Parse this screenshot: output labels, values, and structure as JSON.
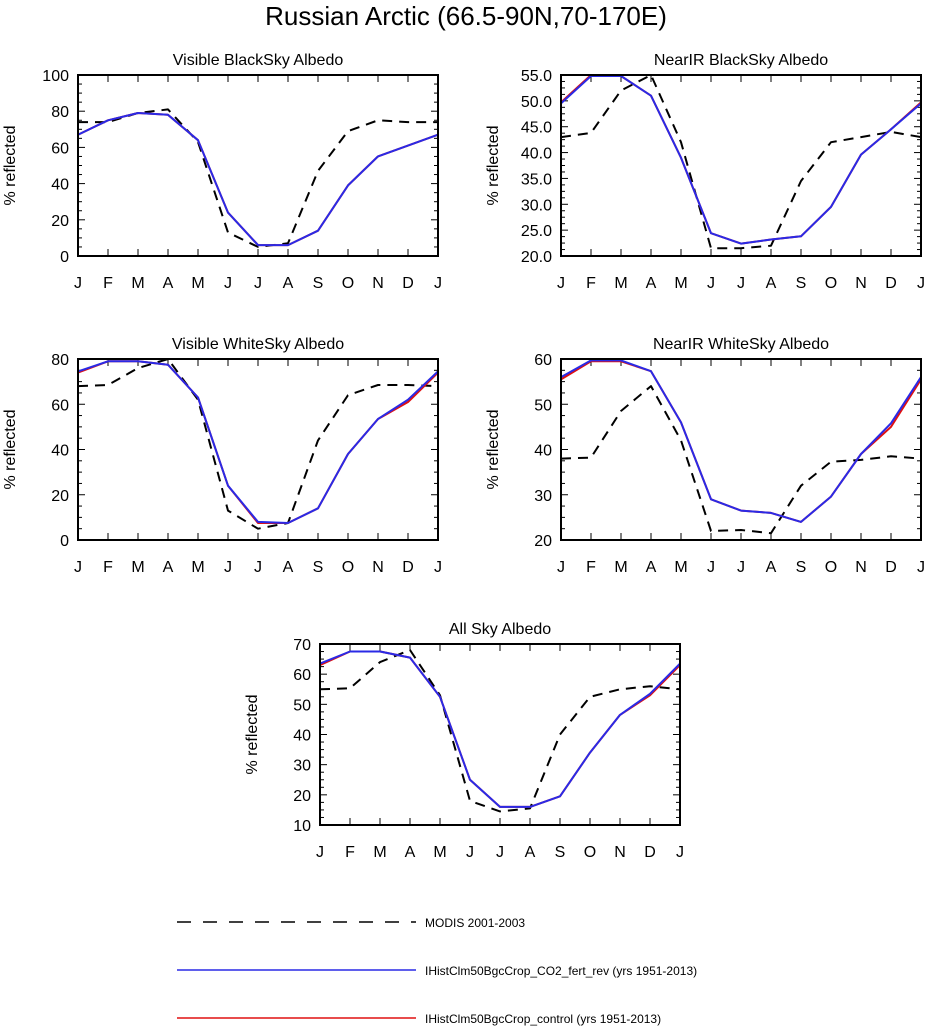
{
  "figure": {
    "title": "Russian Arctic (66.5-90N,70-170E)",
    "colors": {
      "modis": "#000000",
      "co2_fert_rev": "#2a2ae6",
      "control": "#e01010"
    },
    "legend": [
      {
        "label": "MODIS 2001-2003",
        "style": "dashed",
        "color": "#000000"
      },
      {
        "label": "IHistClm50BgcCrop_CO2_fert_rev (yrs 1951-2013)",
        "style": "solid",
        "color": "#2a2ae6"
      },
      {
        "label": "IHistClm50BgcCrop_control (yrs 1951-2013)",
        "style": "solid",
        "color": "#e01010"
      }
    ]
  },
  "chart_data": [
    {
      "type": "line",
      "title": "Visible BlackSky Albedo",
      "ylabel": "% reflected",
      "xlabel": "",
      "categories": [
        "J",
        "F",
        "M",
        "A",
        "M",
        "J",
        "J",
        "A",
        "S",
        "O",
        "N",
        "D",
        "J"
      ],
      "ylim": [
        0,
        100
      ],
      "yticks": [
        0,
        20,
        40,
        60,
        80,
        100
      ],
      "ytick_labels": [
        "0",
        "20",
        "40",
        "60",
        "80",
        "100"
      ],
      "series": [
        {
          "name": "MODIS 2001-2003",
          "style": "dashed",
          "color": "#000000",
          "values": [
            74,
            74,
            79,
            81,
            63,
            13,
            5,
            7,
            47,
            69,
            75,
            74,
            74
          ]
        },
        {
          "name": "IHistClm50BgcCrop_control (yrs 1951-2013)",
          "style": "solid",
          "color": "#e01010",
          "values": [
            67,
            75,
            79,
            78,
            64,
            24,
            6,
            6,
            14,
            39,
            55,
            61,
            67
          ]
        },
        {
          "name": "IHistClm50BgcCrop_CO2_fert_rev (yrs 1951-2013)",
          "style": "solid",
          "color": "#2a2ae6",
          "values": [
            67,
            75,
            79,
            78,
            64,
            24,
            6,
            6,
            14,
            39,
            55,
            61,
            67
          ]
        }
      ]
    },
    {
      "type": "line",
      "title": "NearIR BlackSky Albedo",
      "ylabel": "% reflected",
      "xlabel": "",
      "categories": [
        "J",
        "F",
        "M",
        "A",
        "M",
        "J",
        "J",
        "A",
        "S",
        "O",
        "N",
        "D",
        "J"
      ],
      "ylim": [
        20,
        55
      ],
      "yticks": [
        20,
        25,
        30,
        35,
        40,
        45,
        50,
        55
      ],
      "ytick_labels": [
        "20.0",
        "25.0",
        "30.0",
        "35.0",
        "40.0",
        "45.0",
        "50.0",
        "55.0"
      ],
      "series": [
        {
          "name": "MODIS 2001-2003",
          "style": "dashed",
          "color": "#000000",
          "values": [
            43,
            43.8,
            52,
            55,
            42,
            21.5,
            21.5,
            22,
            34.5,
            42,
            43,
            44,
            43
          ]
        },
        {
          "name": "IHistClm50BgcCrop_control (yrs 1951-2013)",
          "style": "solid",
          "color": "#e01010",
          "values": [
            49.7,
            55,
            54.8,
            51,
            39,
            24.4,
            22.4,
            23.2,
            23.8,
            29.5,
            39.6,
            44.5,
            49.7
          ]
        },
        {
          "name": "IHistClm50BgcCrop_CO2_fert_rev (yrs 1951-2013)",
          "style": "solid",
          "color": "#2a2ae6",
          "values": [
            49.5,
            54.8,
            54.8,
            51,
            39,
            24.4,
            22.4,
            23.2,
            23.8,
            29.5,
            39.6,
            44.5,
            49.5
          ]
        }
      ]
    },
    {
      "type": "line",
      "title": "Visible WhiteSky Albedo",
      "ylabel": "% reflected",
      "xlabel": "",
      "categories": [
        "J",
        "F",
        "M",
        "A",
        "M",
        "J",
        "J",
        "A",
        "S",
        "O",
        "N",
        "D",
        "J"
      ],
      "ylim": [
        0,
        80
      ],
      "yticks": [
        0,
        20,
        40,
        60,
        80
      ],
      "ytick_labels": [
        "0",
        "20",
        "40",
        "60",
        "80"
      ],
      "series": [
        {
          "name": "MODIS 2001-2003",
          "style": "dashed",
          "color": "#000000",
          "values": [
            68,
            68.5,
            76,
            80,
            62,
            13,
            5,
            7.5,
            44,
            64,
            68.5,
            68.5,
            68
          ]
        },
        {
          "name": "IHistClm50BgcCrop_control (yrs 1951-2013)",
          "style": "solid",
          "color": "#e01010",
          "values": [
            74,
            79,
            79,
            77.5,
            63,
            24,
            7.5,
            7.5,
            14,
            38,
            53.5,
            61,
            74
          ]
        },
        {
          "name": "IHistClm50BgcCrop_CO2_fert_rev (yrs 1951-2013)",
          "style": "solid",
          "color": "#2a2ae6",
          "values": [
            74.5,
            79,
            79,
            77.5,
            63,
            24,
            8,
            7.5,
            14,
            38,
            53.5,
            62,
            74.5
          ]
        }
      ]
    },
    {
      "type": "line",
      "title": "NearIR WhiteSky Albedo",
      "ylabel": "% reflected",
      "xlabel": "",
      "categories": [
        "J",
        "F",
        "M",
        "A",
        "M",
        "J",
        "J",
        "A",
        "S",
        "O",
        "N",
        "D",
        "J"
      ],
      "ylim": [
        20,
        60
      ],
      "yticks": [
        20,
        30,
        40,
        50,
        60
      ],
      "ytick_labels": [
        "20",
        "30",
        "40",
        "50",
        "60"
      ],
      "series": [
        {
          "name": "MODIS 2001-2003",
          "style": "dashed",
          "color": "#000000",
          "values": [
            38,
            38.2,
            48.5,
            54,
            42,
            22,
            22.2,
            21.5,
            32,
            37.3,
            37.7,
            38.5,
            38
          ]
        },
        {
          "name": "IHistClm50BgcCrop_control (yrs 1951-2013)",
          "style": "solid",
          "color": "#e01010",
          "values": [
            55.5,
            59.5,
            59.5,
            57.3,
            46,
            29,
            26.5,
            26,
            24,
            29.6,
            39,
            45,
            55.5
          ]
        },
        {
          "name": "IHistClm50BgcCrop_CO2_fert_rev (yrs 1951-2013)",
          "style": "solid",
          "color": "#2a2ae6",
          "values": [
            56,
            59.7,
            59.7,
            57.3,
            46,
            29,
            26.5,
            26,
            24,
            29.6,
            39,
            45.8,
            56
          ]
        }
      ]
    },
    {
      "type": "line",
      "title": "All Sky Albedo",
      "ylabel": "% reflected",
      "xlabel": "",
      "categories": [
        "J",
        "F",
        "M",
        "A",
        "M",
        "J",
        "J",
        "A",
        "S",
        "O",
        "N",
        "D",
        "J"
      ],
      "ylim": [
        10,
        70
      ],
      "yticks": [
        10,
        20,
        30,
        40,
        50,
        60,
        70
      ],
      "ytick_labels": [
        "10",
        "20",
        "30",
        "40",
        "50",
        "60",
        "70"
      ],
      "series": [
        {
          "name": "MODIS 2001-2003",
          "style": "dashed",
          "color": "#000000",
          "values": [
            55,
            55.3,
            64,
            68,
            53,
            18,
            14.5,
            15.5,
            40,
            52.5,
            55,
            56,
            55
          ]
        },
        {
          "name": "IHistClm50BgcCrop_control (yrs 1951-2013)",
          "style": "solid",
          "color": "#e01010",
          "values": [
            63,
            67.5,
            67.5,
            65.5,
            52.5,
            25,
            16,
            16,
            19.5,
            34,
            46.5,
            53,
            63
          ]
        },
        {
          "name": "IHistClm50BgcCrop_CO2_fert_rev (yrs 1951-2013)",
          "style": "solid",
          "color": "#2a2ae6",
          "values": [
            63.5,
            67.5,
            67.5,
            65.5,
            52.5,
            25,
            16,
            16,
            19.5,
            34,
            46.5,
            53.5,
            63.5
          ]
        }
      ]
    }
  ]
}
